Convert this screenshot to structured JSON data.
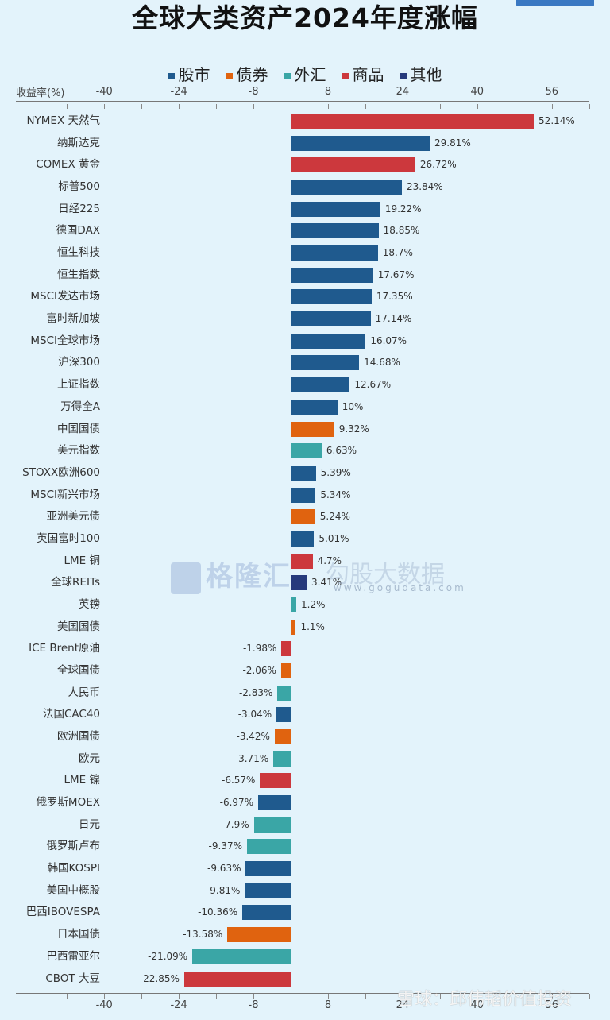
{
  "title": "全球大类资产2024年度涨幅",
  "legend": [
    {
      "label": "股市",
      "color": "#1f5a8e"
    },
    {
      "label": "债券",
      "color": "#e0630f"
    },
    {
      "label": "外汇",
      "color": "#3aa6a6"
    },
    {
      "label": "商品",
      "color": "#cc383d"
    },
    {
      "label": "其他",
      "color": "#263a7c"
    }
  ],
  "axis": {
    "title": "收益率(%)",
    "ticks": [
      "-40",
      "-24",
      "-8",
      "8",
      "24",
      "40",
      "56"
    ]
  },
  "watermarks": {
    "brand1": "格隆汇",
    "brand2": "勾股大数据",
    "url": "www.gogudata.com",
    "source": "雪球：邱伟韬价值投资"
  },
  "chart_data": {
    "type": "bar",
    "orientation": "horizontal",
    "title": "全球大类资产2024年度涨幅",
    "xlabel": "收益率(%)",
    "xlim": [
      -48,
      64
    ],
    "xticks": [
      -40,
      -24,
      -8,
      8,
      24,
      40,
      56
    ],
    "legend_position": "top",
    "grid": false,
    "categories": [
      "NYMEX 天然气",
      "纳斯达克",
      "COMEX 黄金",
      "标普500",
      "日经225",
      "德国DAX",
      "恒生科技",
      "恒生指数",
      "MSCI发达市场",
      "富时新加坡",
      "MSCI全球市场",
      "沪深300",
      "上证指数",
      "万得全A",
      "中国国债",
      "美元指数",
      "STOXX欧洲600",
      "MSCI新兴市场",
      "亚洲美元债",
      "英国富时100",
      "LME 铜",
      "全球REITs",
      "英镑",
      "美国国债",
      "ICE Brent原油",
      "全球国债",
      "人民币",
      "法国CAC40",
      "欧洲国债",
      "欧元",
      "LME 镍",
      "俄罗斯MOEX",
      "日元",
      "俄罗斯卢布",
      "韩国KOSPI",
      "美国中概股",
      "巴西IBOVESPA",
      "日本国债",
      "巴西雷亚尔",
      "CBOT 大豆"
    ],
    "values": [
      52.14,
      29.81,
      26.72,
      23.84,
      19.22,
      18.85,
      18.7,
      17.67,
      17.35,
      17.14,
      16.07,
      14.68,
      12.67,
      10,
      9.32,
      6.63,
      5.39,
      5.34,
      5.24,
      5.01,
      4.7,
      3.41,
      1.2,
      1.1,
      -1.98,
      -2.06,
      -2.83,
      -3.04,
      -3.42,
      -3.71,
      -6.57,
      -6.97,
      -7.9,
      -9.37,
      -9.63,
      -9.81,
      -10.36,
      -13.58,
      -21.09,
      -22.85
    ],
    "value_labels": [
      "52.14%",
      "29.81%",
      "26.72%",
      "23.84%",
      "19.22%",
      "18.85%",
      "18.7%",
      "17.67%",
      "17.35%",
      "17.14%",
      "16.07%",
      "14.68%",
      "12.67%",
      "10%",
      "9.32%",
      "6.63%",
      "5.39%",
      "5.34%",
      "5.24%",
      "5.01%",
      "4.7%",
      "3.41%",
      "1.2%",
      "1.1%",
      "-1.98%",
      "-2.06%",
      "-2.83%",
      "-3.04%",
      "-3.42%",
      "-3.71%",
      "-6.57%",
      "-6.97%",
      "-7.9%",
      "-9.37%",
      "-9.63%",
      "-9.81%",
      "-10.36%",
      "-13.58%",
      "-21.09%",
      "-22.85%"
    ],
    "groups": [
      "商品",
      "股市",
      "商品",
      "股市",
      "股市",
      "股市",
      "股市",
      "股市",
      "股市",
      "股市",
      "股市",
      "股市",
      "股市",
      "股市",
      "债券",
      "外汇",
      "股市",
      "股市",
      "债券",
      "股市",
      "商品",
      "其他",
      "外汇",
      "债券",
      "商品",
      "债券",
      "外汇",
      "股市",
      "债券",
      "外汇",
      "商品",
      "股市",
      "外汇",
      "外汇",
      "股市",
      "股市",
      "股市",
      "债券",
      "外汇",
      "商品"
    ]
  }
}
